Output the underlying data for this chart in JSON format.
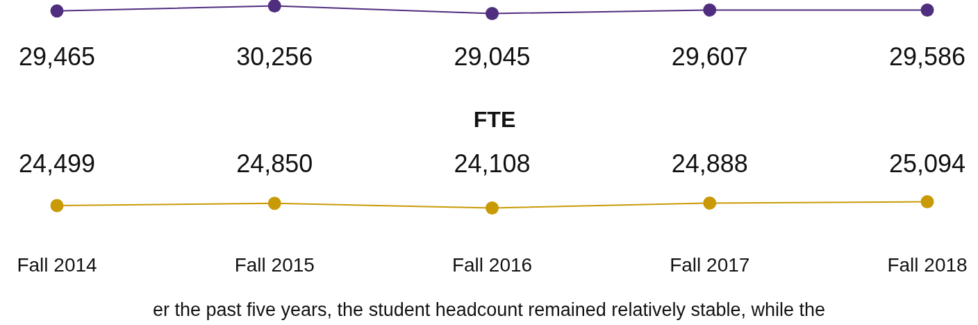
{
  "chart_data": [
    {
      "type": "line",
      "series": [
        {
          "color": "#4f2d7f",
          "values": [
            29465,
            30256,
            29045,
            29607,
            29586
          ],
          "value_labels": [
            "29,465",
            "30,256",
            "29,045",
            "29,607",
            "29,586"
          ]
        }
      ],
      "marker": "circle"
    },
    {
      "type": "line",
      "title": "FTE",
      "categories": [
        "Fall 2014",
        "Fall 2015",
        "Fall 2016",
        "Fall 2017",
        "Fall 2018"
      ],
      "series": [
        {
          "color": "#c99a06",
          "values": [
            24499,
            24850,
            24108,
            24888,
            25094
          ],
          "value_labels": [
            "24,499",
            "24,850",
            "24,108",
            "24,888",
            "25,094"
          ]
        }
      ],
      "marker": "circle",
      "annotations": [
        "er the past five years, the student headcount remained relatively stable, while the"
      ]
    }
  ]
}
